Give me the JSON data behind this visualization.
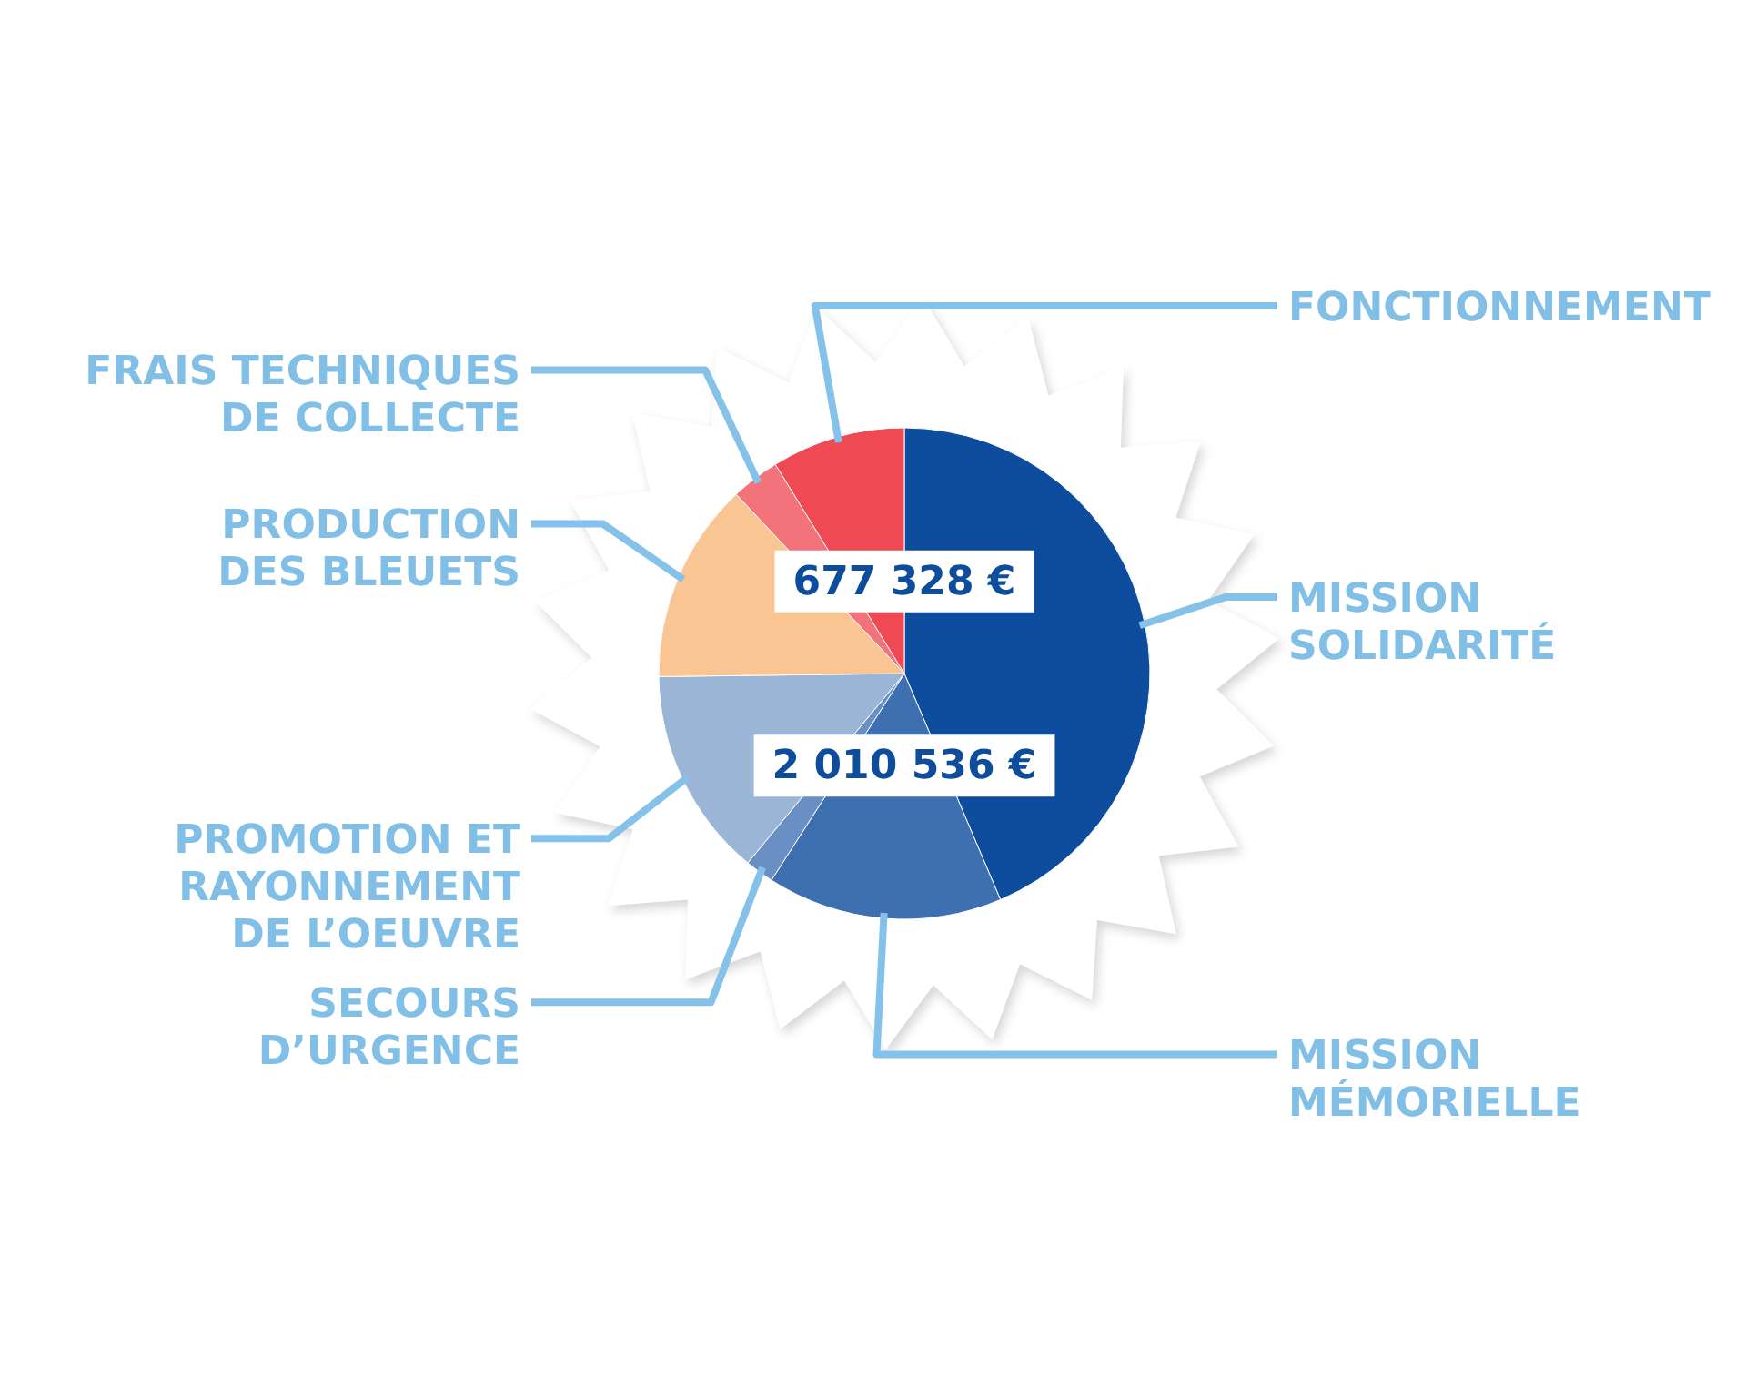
{
  "chart_data": {
    "type": "pie",
    "categories": [
      "MISSION SOLIDARITÉ",
      "MISSION MÉMORIELLE",
      "SECOURS D’URGENCE",
      "PROMOTION ET RAYONNEMENT DE L’OEUVRE",
      "PRODUCTION DES BLEUETS",
      "FRAIS TECHNIQUES DE COLLECTE",
      "FONCTIONNEMENT"
    ],
    "values": [
      43.6,
      15.5,
      1.9,
      13.8,
      13.2,
      3.2,
      8.8
    ],
    "colors": [
      "#0e4d9d",
      "#3e6fb0",
      "#6a8fc5",
      "#9bb5d6",
      "#f9c593",
      "#f2747a",
      "#ef4953"
    ],
    "annotations": [
      "677 328 €",
      "2 010 536 €"
    ]
  }
}
